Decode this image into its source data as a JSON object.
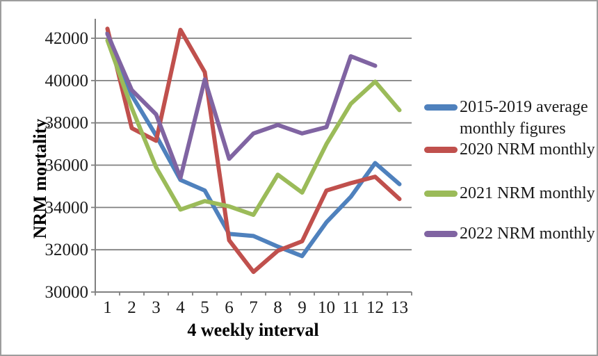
{
  "chart_data": {
    "type": "line",
    "title": "",
    "xlabel": "4 weekly interval",
    "ylabel": "NRM mortality",
    "x": [
      1,
      2,
      3,
      4,
      5,
      6,
      7,
      8,
      9,
      10,
      11,
      12,
      13
    ],
    "yticks": [
      30000,
      32000,
      34000,
      36000,
      38000,
      40000,
      42000
    ],
    "ylim": [
      30000,
      42950
    ],
    "grid": true,
    "legend_position": "right",
    "series": [
      {
        "name": "2015-2019 average monthly figures",
        "color": "#4F81BD",
        "values": [
          42250,
          39300,
          37400,
          35300,
          34800,
          32750,
          32650,
          32150,
          31700,
          33300,
          34500,
          36100,
          35100
        ]
      },
      {
        "name": "2020 NRM monthly",
        "color": "#C0504D",
        "values": [
          42450,
          37750,
          37150,
          42400,
          40400,
          32450,
          30950,
          31950,
          32400,
          34800,
          35150,
          35450,
          34400
        ]
      },
      {
        "name": "2021 NRM monthly",
        "color": "#9BBB59",
        "values": [
          41900,
          38700,
          35900,
          33900,
          34300,
          34050,
          33650,
          35550,
          34700,
          37000,
          38900,
          39950,
          38600
        ]
      },
      {
        "name": "2022 NRM monthly",
        "color": "#8064A2",
        "values": [
          42200,
          39550,
          38400,
          35400,
          40050,
          36300,
          37500,
          37900,
          37500,
          37800,
          41150,
          40700,
          null
        ]
      }
    ]
  },
  "legend": {
    "items": [
      {
        "lines": [
          "2015-2019 average",
          "monthly figures"
        ],
        "color": "#4F81BD"
      },
      {
        "lines": [
          "2020 NRM monthly"
        ],
        "color": "#C0504D"
      },
      {
        "lines": [
          "2021 NRM monthly"
        ],
        "color": "#9BBB59"
      },
      {
        "lines": [
          "2022 NRM monthly"
        ],
        "color": "#8064A2"
      }
    ]
  },
  "colors": {
    "gridline": "#808080",
    "axis": "#808080",
    "text": "#1a1a1a",
    "frame_border": "#9d9d9d"
  }
}
